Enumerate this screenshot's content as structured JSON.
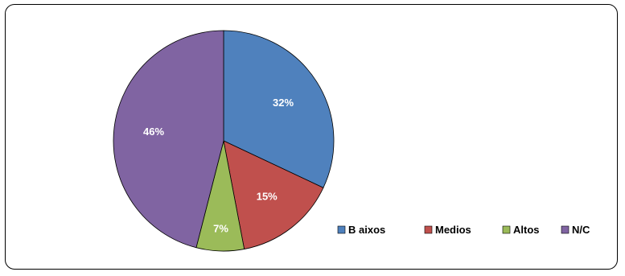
{
  "chart_data": {
    "type": "pie",
    "title": "",
    "slices": [
      {
        "label": "B aixos",
        "value": 32,
        "display": "32%",
        "color": "#4F81BD"
      },
      {
        "label": "Medios",
        "value": 15,
        "display": "15%",
        "color": "#C0504D"
      },
      {
        "label": "Altos",
        "value": 7,
        "display": "7%",
        "color": "#9BBB59"
      },
      {
        "label": "N/C",
        "value": 46,
        "display": "46%",
        "color": "#8064A2"
      }
    ],
    "legend_position": "bottom-right"
  }
}
